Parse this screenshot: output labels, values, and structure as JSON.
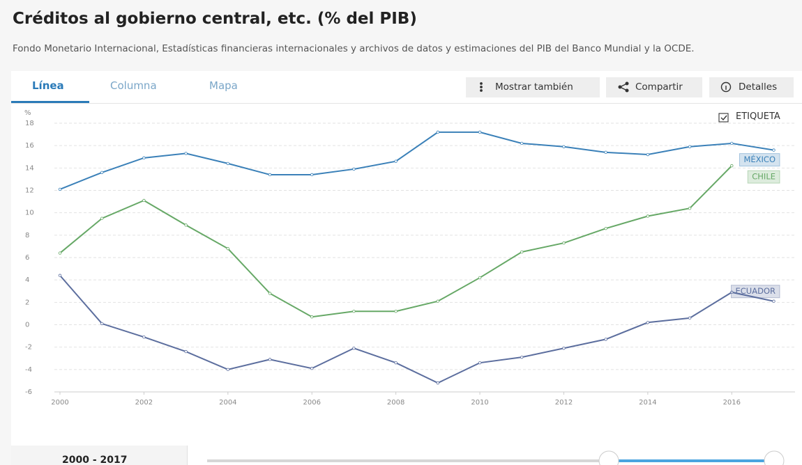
{
  "header": {
    "title": "Créditos al gobierno central, etc. (% del PIB)",
    "source": "Fondo Monetario Internacional, Estadísticas financieras internacionales y archivos de datos y estimaciones del PIB del Banco Mundial y la OCDE."
  },
  "tabs": [
    "Línea",
    "Columna",
    "Mapa"
  ],
  "buttons": [
    "Mostrar también",
    "Compartir",
    "Detalles"
  ],
  "label_toggle": "ETIQUETA",
  "range_label": "2000 - 2017",
  "chart_data": {
    "type": "line",
    "y_label": "%",
    "x": [
      2000,
      2001,
      2002,
      2003,
      2004,
      2005,
      2006,
      2007,
      2008,
      2009,
      2010,
      2011,
      2012,
      2013,
      2014,
      2015,
      2016,
      2017
    ],
    "xlim": [
      2000,
      2017
    ],
    "xticks": [
      2000,
      2002,
      2004,
      2006,
      2008,
      2010,
      2012,
      2014,
      2016
    ],
    "ylim": [
      -6,
      18
    ],
    "yticks": [
      -6,
      -4,
      -2,
      0,
      2,
      4,
      6,
      8,
      10,
      12,
      14,
      16,
      18
    ],
    "grid": true,
    "series": [
      {
        "name": "MÉXICO",
        "color": "#3a80b8",
        "values": [
          12.1,
          13.6,
          14.9,
          15.3,
          14.4,
          13.4,
          13.4,
          13.9,
          14.6,
          17.2,
          17.2,
          16.2,
          15.9,
          15.4,
          15.2,
          15.9,
          16.2,
          15.6
        ]
      },
      {
        "name": "CHILE",
        "color": "#66a866",
        "values": [
          6.4,
          9.5,
          11.1,
          8.9,
          6.8,
          2.8,
          0.7,
          1.2,
          1.2,
          2.1,
          4.2,
          6.5,
          7.3,
          8.6,
          9.7,
          10.4,
          14.2,
          null
        ]
      },
      {
        "name": "ECUADOR",
        "color": "#5c6e9e",
        "values": [
          4.4,
          0.1,
          -1.1,
          -2.4,
          -4.0,
          -3.1,
          -3.9,
          -2.1,
          -3.4,
          -5.2,
          -3.4,
          -2.9,
          -2.1,
          -1.3,
          0.2,
          0.6,
          2.9,
          2.1
        ]
      }
    ]
  }
}
